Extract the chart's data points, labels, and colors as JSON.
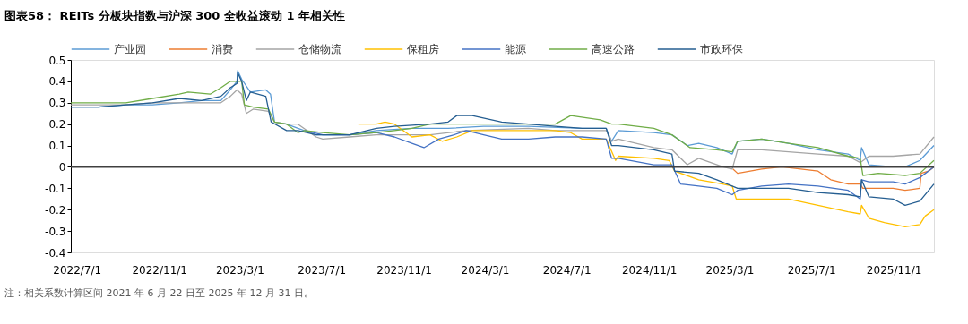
{
  "chart_data": {
    "type": "line",
    "title": "图表58： REITs 分板块指数与沪深 300 全收益滚动 1 年相关性",
    "annotations": [
      "注：相关系数计算区间 2021 年 6 月 22 日至 2025 年 12 月 31 日。"
    ],
    "xlim": [
      "2022-06-22",
      "2025-12-31"
    ],
    "xticks": [
      {
        "value": "2022-07-01",
        "label": "2022/7/1"
      },
      {
        "value": "2022-11-01",
        "label": "2022/11/1"
      },
      {
        "value": "2023-03-01",
        "label": "2023/3/1"
      },
      {
        "value": "2023-07-01",
        "label": "2023/7/1"
      },
      {
        "value": "2023-11-01",
        "label": "2023/11/1"
      },
      {
        "value": "2024-03-01",
        "label": "2024/3/1"
      },
      {
        "value": "2024-07-01",
        "label": "2024/7/1"
      },
      {
        "value": "2024-11-01",
        "label": "2024/11/1"
      },
      {
        "value": "2025-03-01",
        "label": "2025/3/1"
      },
      {
        "value": "2025-07-01",
        "label": "2025/7/1"
      },
      {
        "value": "2025-11-01",
        "label": "2025/11/1"
      }
    ],
    "ylim": [
      -0.4,
      0.5
    ],
    "yticks": [
      -0.4,
      -0.3,
      -0.2,
      -0.1,
      0,
      0.1,
      0.2,
      0.3,
      0.4,
      0.5
    ],
    "grid": false,
    "legend": "top",
    "marker": "none",
    "line_style": "solid",
    "ref_lines": [
      {
        "axis": "y",
        "value": 0,
        "color": "#404040"
      }
    ],
    "series": [
      {
        "name": "产业园",
        "color": "#5b9bd5",
        "x": [
          "2022-06-22",
          "2022-08-02",
          "2022-09-12",
          "2022-10-22",
          "2022-12-01",
          "2023-01-03",
          "2023-02-01",
          "2023-02-15",
          "2023-02-25",
          "2023-02-26",
          "2023-03-04",
          "2023-03-17",
          "2023-04-09",
          "2023-04-16",
          "2023-04-22",
          "2023-05-10",
          "2023-05-27",
          "2023-06-23",
          "2023-07-03",
          "2023-08-12",
          "2023-09-21",
          "2023-11-13",
          "2024-01-06",
          "2024-02-28",
          "2024-05-05",
          "2024-07-24",
          "2024-08-29",
          "2024-09-06",
          "2024-09-16",
          "2024-11-08",
          "2024-12-05",
          "2024-12-28",
          "2025-01-14",
          "2025-02-10",
          "2025-03-05",
          "2025-03-13",
          "2025-04-18",
          "2025-05-28",
          "2025-07-11",
          "2025-08-25",
          "2025-09-12",
          "2025-09-14",
          "2025-09-25",
          "2025-10-31",
          "2025-11-18",
          "2025-12-10",
          "2025-12-31"
        ],
        "values": [
          0.28,
          0.28,
          0.29,
          0.29,
          0.3,
          0.31,
          0.31,
          0.36,
          0.4,
          0.45,
          0.41,
          0.35,
          0.36,
          0.34,
          0.21,
          0.2,
          0.18,
          0.15,
          0.15,
          0.15,
          0.17,
          0.18,
          0.18,
          0.19,
          0.19,
          0.18,
          0.18,
          0.12,
          0.17,
          0.16,
          0.15,
          0.1,
          0.11,
          0.09,
          0.06,
          0.12,
          0.13,
          0.11,
          0.08,
          0.06,
          0.03,
          0.09,
          0.01,
          0.0,
          0.0,
          0.03,
          0.1
        ]
      },
      {
        "name": "消费",
        "color": "#ed7d31",
        "x": [
          "2025-03-06",
          "2025-03-13",
          "2025-04-18",
          "2025-05-18",
          "2025-07-11",
          "2025-07-30",
          "2025-08-25",
          "2025-09-12",
          "2025-09-16",
          "2025-10-31",
          "2025-11-18",
          "2025-12-10",
          "2025-12-12",
          "2025-12-23",
          "2025-12-31"
        ],
        "values": [
          -0.01,
          -0.03,
          -0.01,
          0.0,
          -0.02,
          -0.06,
          -0.08,
          -0.08,
          -0.1,
          -0.1,
          -0.11,
          -0.1,
          -0.03,
          -0.02,
          0.0
        ]
      },
      {
        "name": "仓储物流",
        "color": "#a5a5a5",
        "x": [
          "2022-06-22",
          "2022-08-02",
          "2022-09-12",
          "2022-10-22",
          "2022-12-01",
          "2023-01-03",
          "2023-02-01",
          "2023-02-15",
          "2023-02-25",
          "2023-03-04",
          "2023-03-11",
          "2023-03-21",
          "2023-04-13",
          "2023-04-22",
          "2023-05-10",
          "2023-05-27",
          "2023-06-23",
          "2023-07-03",
          "2023-08-12",
          "2023-09-21",
          "2023-10-18",
          "2023-12-10",
          "2024-02-02",
          "2024-05-05",
          "2024-06-14",
          "2024-07-24",
          "2024-08-29",
          "2024-09-06",
          "2024-09-16",
          "2024-11-08",
          "2024-12-05",
          "2024-12-28",
          "2025-01-14",
          "2025-02-19",
          "2025-03-05",
          "2025-03-13",
          "2025-04-18",
          "2025-05-28",
          "2025-07-11",
          "2025-08-25",
          "2025-09-12",
          "2025-09-25",
          "2025-10-31",
          "2025-12-10",
          "2025-12-31"
        ],
        "values": [
          0.29,
          0.29,
          0.29,
          0.3,
          0.3,
          0.3,
          0.3,
          0.33,
          0.36,
          0.34,
          0.25,
          0.27,
          0.26,
          0.21,
          0.2,
          0.2,
          0.14,
          0.13,
          0.14,
          0.15,
          0.15,
          0.15,
          0.17,
          0.18,
          0.17,
          0.17,
          0.17,
          0.12,
          0.13,
          0.09,
          0.08,
          0.01,
          0.04,
          0.0,
          -0.01,
          0.08,
          0.08,
          0.07,
          0.06,
          0.05,
          0.02,
          0.05,
          0.05,
          0.06,
          0.14
        ]
      },
      {
        "name": "保租房",
        "color": "#ffc000",
        "x": [
          "2023-08-25",
          "2023-09-21",
          "2023-10-04",
          "2023-10-18",
          "2023-11-13",
          "2023-12-10",
          "2023-12-28",
          "2024-01-19",
          "2024-02-11",
          "2024-03-26",
          "2024-05-05",
          "2024-06-14",
          "2024-07-07",
          "2024-07-24",
          "2024-08-29",
          "2024-09-12",
          "2024-09-16",
          "2024-11-08",
          "2024-12-01",
          "2024-12-09",
          "2025-01-14",
          "2025-02-19",
          "2025-03-05",
          "2025-03-11",
          "2025-04-18",
          "2025-05-28",
          "2025-07-11",
          "2025-08-25",
          "2025-09-12",
          "2025-09-14",
          "2025-09-25",
          "2025-10-18",
          "2025-11-18",
          "2025-12-10",
          "2025-12-18",
          "2025-12-31"
        ],
        "values": [
          0.2,
          0.2,
          0.21,
          0.2,
          0.14,
          0.15,
          0.12,
          0.14,
          0.17,
          0.17,
          0.17,
          0.17,
          0.16,
          0.13,
          0.13,
          0.03,
          0.05,
          0.04,
          0.03,
          -0.02,
          -0.06,
          -0.08,
          -0.09,
          -0.15,
          -0.15,
          -0.15,
          -0.18,
          -0.21,
          -0.22,
          -0.18,
          -0.24,
          -0.26,
          -0.28,
          -0.27,
          -0.23,
          -0.2
        ]
      },
      {
        "name": "能源",
        "color": "#4472c4",
        "x": [
          "2023-06-06",
          "2023-07-03",
          "2023-08-12",
          "2023-09-21",
          "2023-10-18",
          "2023-11-13",
          "2023-12-01",
          "2023-12-23",
          "2024-01-15",
          "2024-02-02",
          "2024-02-28",
          "2024-03-26",
          "2024-05-05",
          "2024-06-14",
          "2024-07-24",
          "2024-08-29",
          "2024-09-06",
          "2024-09-16",
          "2024-11-08",
          "2024-12-05",
          "2024-12-18",
          "2025-01-14",
          "2025-02-10",
          "2025-03-05",
          "2025-03-13",
          "2025-04-18",
          "2025-05-28",
          "2025-07-11",
          "2025-08-25",
          "2025-09-12",
          "2025-09-14",
          "2025-09-25",
          "2025-10-31",
          "2025-11-18",
          "2025-12-10",
          "2025-12-31"
        ],
        "values": [
          0.17,
          0.15,
          0.15,
          0.16,
          0.14,
          0.11,
          0.09,
          0.13,
          0.15,
          0.17,
          0.15,
          0.13,
          0.13,
          0.14,
          0.14,
          0.13,
          0.04,
          0.04,
          0.01,
          0.01,
          -0.08,
          -0.09,
          -0.1,
          -0.13,
          -0.11,
          -0.09,
          -0.08,
          -0.09,
          -0.11,
          -0.15,
          -0.06,
          -0.07,
          -0.07,
          -0.08,
          -0.05,
          0.0
        ]
      },
      {
        "name": "高速公路",
        "color": "#70ad47",
        "x": [
          "2022-06-22",
          "2022-08-02",
          "2022-09-12",
          "2022-10-22",
          "2022-12-01",
          "2022-12-14",
          "2023-01-16",
          "2023-02-01",
          "2023-02-15",
          "2023-03-04",
          "2023-03-08",
          "2023-03-21",
          "2023-04-13",
          "2023-04-22",
          "2023-05-10",
          "2023-05-27",
          "2023-06-06",
          "2023-07-03",
          "2023-08-12",
          "2023-09-21",
          "2023-10-18",
          "2023-11-13",
          "2023-12-10",
          "2024-01-06",
          "2024-02-02",
          "2024-03-26",
          "2024-05-05",
          "2024-06-14",
          "2024-07-07",
          "2024-08-20",
          "2024-09-06",
          "2024-09-16",
          "2024-11-08",
          "2024-12-05",
          "2025-01-01",
          "2025-02-10",
          "2025-03-05",
          "2025-03-13",
          "2025-04-18",
          "2025-05-28",
          "2025-07-11",
          "2025-08-25",
          "2025-09-12",
          "2025-09-16",
          "2025-10-09",
          "2025-11-18",
          "2025-12-10",
          "2025-12-31"
        ],
        "values": [
          0.3,
          0.3,
          0.3,
          0.32,
          0.34,
          0.35,
          0.34,
          0.37,
          0.4,
          0.4,
          0.29,
          0.28,
          0.27,
          0.21,
          0.2,
          0.16,
          0.17,
          0.16,
          0.15,
          0.16,
          0.17,
          0.18,
          0.2,
          0.2,
          0.2,
          0.2,
          0.2,
          0.2,
          0.24,
          0.22,
          0.2,
          0.2,
          0.18,
          0.15,
          0.09,
          0.08,
          0.07,
          0.12,
          0.13,
          0.11,
          0.09,
          0.05,
          0.04,
          -0.04,
          -0.03,
          -0.04,
          -0.03,
          0.03
        ]
      },
      {
        "name": "市政环保",
        "color": "#255e91",
        "x": [
          "2022-06-22",
          "2022-08-02",
          "2022-09-12",
          "2022-10-22",
          "2022-12-01",
          "2023-01-03",
          "2023-02-01",
          "2023-02-15",
          "2023-02-25",
          "2023-02-26",
          "2023-03-04",
          "2023-03-11",
          "2023-03-17",
          "2023-04-09",
          "2023-04-17",
          "2023-05-10",
          "2023-05-27",
          "2023-06-23",
          "2023-07-03",
          "2023-08-12",
          "2023-09-21",
          "2023-10-18",
          "2023-12-10",
          "2024-01-06",
          "2024-01-19",
          "2024-02-11",
          "2024-03-26",
          "2024-05-05",
          "2024-06-14",
          "2024-07-24",
          "2024-08-29",
          "2024-09-06",
          "2024-09-16",
          "2024-11-08",
          "2024-12-05",
          "2024-12-09",
          "2025-01-14",
          "2025-02-10",
          "2025-03-05",
          "2025-03-13",
          "2025-04-18",
          "2025-05-28",
          "2025-07-11",
          "2025-08-25",
          "2025-09-12",
          "2025-09-14",
          "2025-09-25",
          "2025-10-31",
          "2025-11-18",
          "2025-12-10",
          "2025-12-31"
        ],
        "values": [
          0.28,
          0.28,
          0.29,
          0.3,
          0.32,
          0.31,
          0.33,
          0.37,
          0.39,
          0.44,
          0.4,
          0.31,
          0.35,
          0.33,
          0.21,
          0.17,
          0.17,
          0.15,
          0.15,
          0.15,
          0.18,
          0.19,
          0.2,
          0.21,
          0.24,
          0.24,
          0.21,
          0.2,
          0.19,
          0.18,
          0.18,
          0.1,
          0.1,
          0.08,
          0.06,
          -0.02,
          -0.03,
          -0.06,
          -0.09,
          -0.1,
          -0.1,
          -0.1,
          -0.12,
          -0.13,
          -0.14,
          -0.06,
          -0.14,
          -0.15,
          -0.18,
          -0.16,
          -0.08
        ]
      }
    ]
  }
}
